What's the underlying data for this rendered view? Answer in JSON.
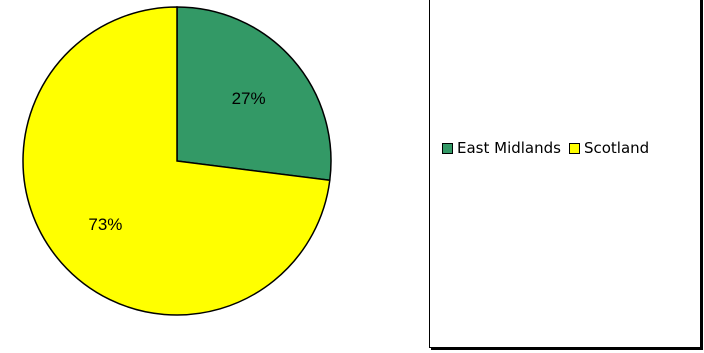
{
  "chart_data": {
    "type": "pie",
    "title": "",
    "slices": [
      {
        "name": "East Midlands",
        "value": 27,
        "label": "27%",
        "color": "#339966"
      },
      {
        "name": "Scotland",
        "value": 73,
        "label": "73%",
        "color": "#FFFF00"
      }
    ],
    "legend_position": "right",
    "start_angle": "12-o'clock",
    "direction": "clockwise"
  }
}
